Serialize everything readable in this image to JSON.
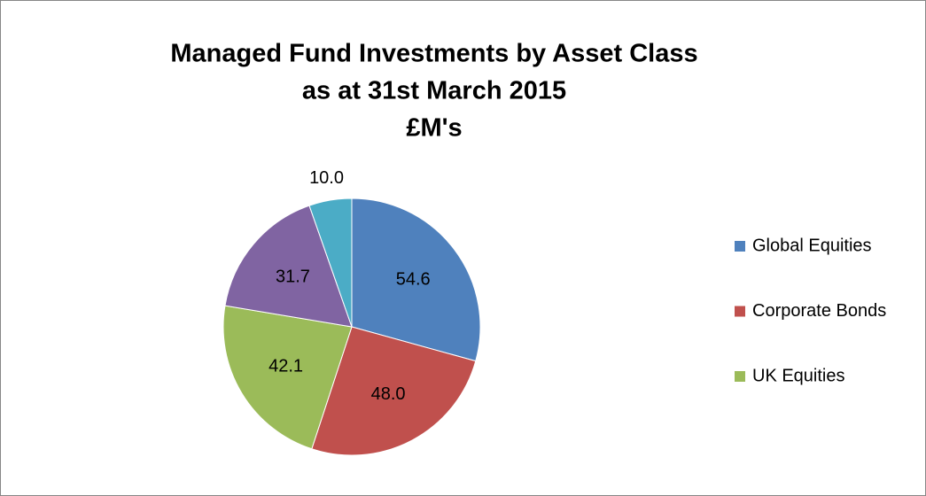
{
  "chart_data": {
    "type": "pie",
    "title": [
      "Managed Fund Investments by Asset Class",
      "as at 31st March 2015",
      "£M's"
    ],
    "categories": [
      "Global Equities",
      "Corporate Bonds",
      "UK Equities",
      null,
      null
    ],
    "values": [
      54.6,
      48.0,
      42.1,
      31.7,
      10.0
    ],
    "value_labels": [
      "54.6",
      "48.0",
      "42.1",
      "31.7",
      "10.0"
    ],
    "colors": [
      "#4f81bd",
      "#c0504d",
      "#9bbb59",
      "#8064a2",
      "#4bacc6"
    ],
    "legend": "right"
  }
}
